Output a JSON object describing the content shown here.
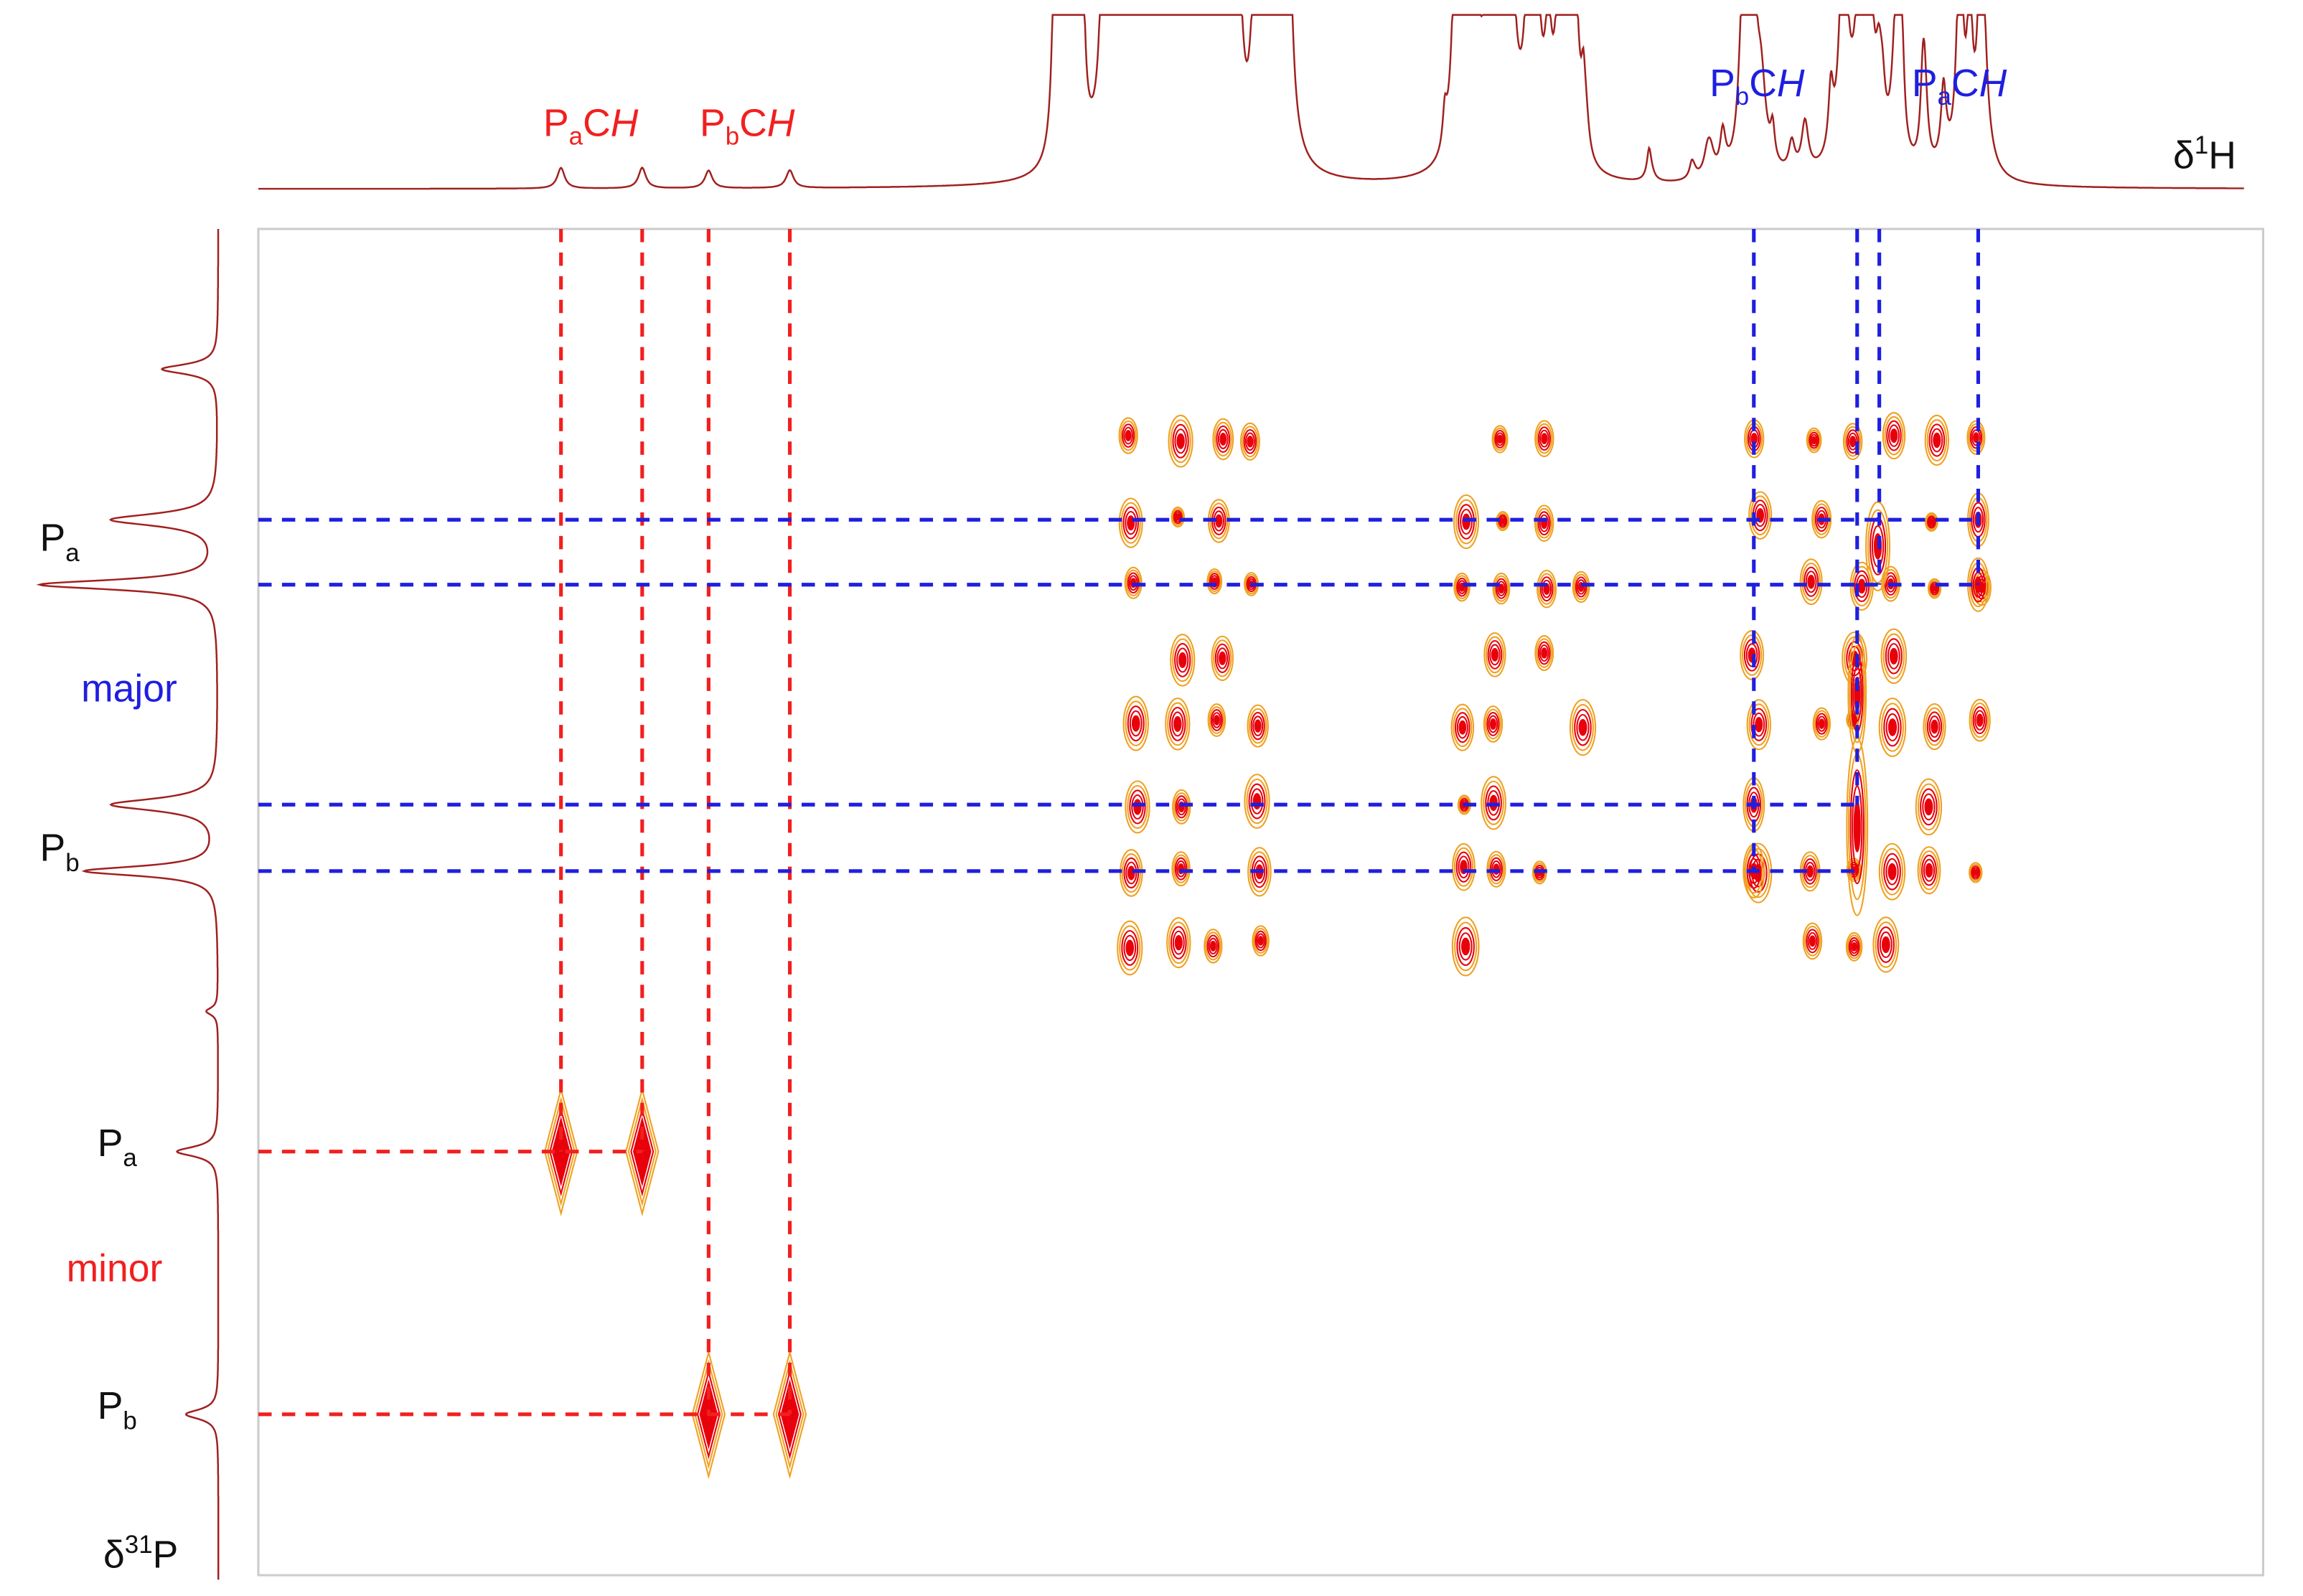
{
  "top_labels": [
    {
      "base": "P",
      "sub": "a",
      "mid": "C",
      "italic": "H"
    },
    {
      "base": "P",
      "sub": "b",
      "mid": "C",
      "italic": "H"
    },
    {
      "base": "P",
      "sub": "b",
      "mid": "C",
      "italic": "H"
    },
    {
      "base": "P",
      "sub": "a",
      "mid": "C",
      "italic": "H"
    }
  ],
  "h_axis": {
    "base": "δ",
    "sup": "1",
    "rest": "H"
  },
  "p_axis": {
    "base": "δ",
    "sup": "31",
    "rest": "P"
  },
  "left_labels": [
    {
      "base": "P",
      "sub": "a"
    },
    {
      "base": "P",
      "sub": "b"
    },
    {
      "base": "P",
      "sub": "a"
    },
    {
      "base": "P",
      "sub": "b"
    }
  ],
  "groups": [
    "major",
    "minor"
  ]
}
